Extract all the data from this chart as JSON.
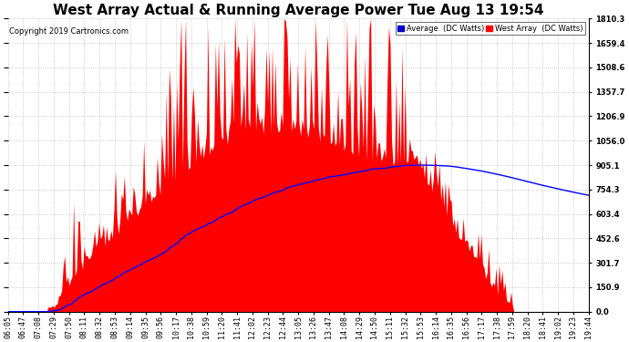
{
  "title": "West Array Actual & Running Average Power Tue Aug 13 19:54",
  "copyright": "Copyright 2019 Cartronics.com",
  "ylabel_right_ticks": [
    0.0,
    150.9,
    301.7,
    452.6,
    603.4,
    754.3,
    905.1,
    1056.0,
    1206.9,
    1357.7,
    1508.6,
    1659.4,
    1810.3
  ],
  "ymax": 1810.3,
  "ymin": 0.0,
  "legend_avg": "Average  (DC Watts)",
  "legend_west": "West Array  (DC Watts)",
  "bg_color": "#ffffff",
  "grid_color": "#bbbbbb",
  "fill_color": "#ff0000",
  "avg_line_color": "#0000ff",
  "title_fontsize": 11,
  "label_fontsize": 6,
  "copyright_fontsize": 6,
  "x_labels": [
    "06:05",
    "06:47",
    "07:08",
    "07:29",
    "07:50",
    "08:11",
    "08:32",
    "08:53",
    "09:14",
    "09:35",
    "09:56",
    "10:17",
    "10:38",
    "10:59",
    "11:20",
    "11:41",
    "12:02",
    "12:23",
    "12:44",
    "13:05",
    "13:26",
    "13:47",
    "14:08",
    "14:29",
    "14:50",
    "15:11",
    "15:32",
    "15:53",
    "16:14",
    "16:35",
    "16:56",
    "17:17",
    "17:38",
    "17:59",
    "18:20",
    "18:41",
    "19:02",
    "19:23",
    "19:44"
  ]
}
